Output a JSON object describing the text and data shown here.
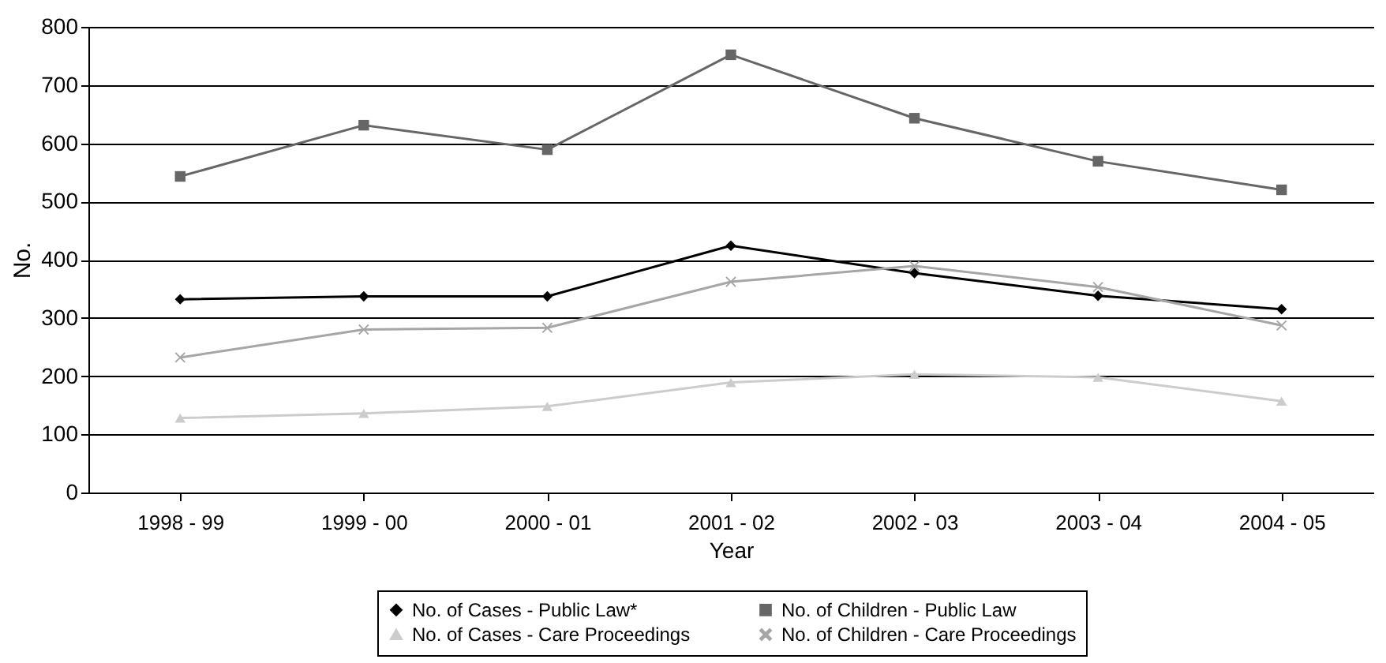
{
  "chart_data": {
    "type": "line",
    "xlabel": "Year",
    "ylabel": "No.",
    "categories": [
      "1998 - 99",
      "1999 - 00",
      "2000 - 01",
      "2001 - 02",
      "2002 - 03",
      "2003 - 04",
      "2004 - 05"
    ],
    "series": [
      {
        "name": "No. of Cases - Public Law*",
        "color": "#000000",
        "marker": "diamond",
        "values": [
          332,
          337,
          337,
          424,
          377,
          338,
          315
        ]
      },
      {
        "name": "No. of Children - Public Law",
        "color": "#666666",
        "marker": "square",
        "values": [
          543,
          631,
          589,
          752,
          643,
          569,
          520
        ]
      },
      {
        "name": "No. of Cases - Care Proceedings",
        "color": "#cccccc",
        "marker": "triangle",
        "values": [
          128,
          136,
          148,
          189,
          203,
          198,
          157
        ]
      },
      {
        "name": "No. of Children - Care Proceedings",
        "color": "#a6a6a6",
        "marker": "cross",
        "values": [
          232,
          280,
          283,
          362,
          389,
          353,
          287
        ]
      }
    ],
    "ylim": [
      0,
      800
    ],
    "yticks": [
      0,
      100,
      200,
      300,
      400,
      500,
      600,
      700,
      800
    ],
    "grid": "y",
    "legend": "bottom"
  }
}
